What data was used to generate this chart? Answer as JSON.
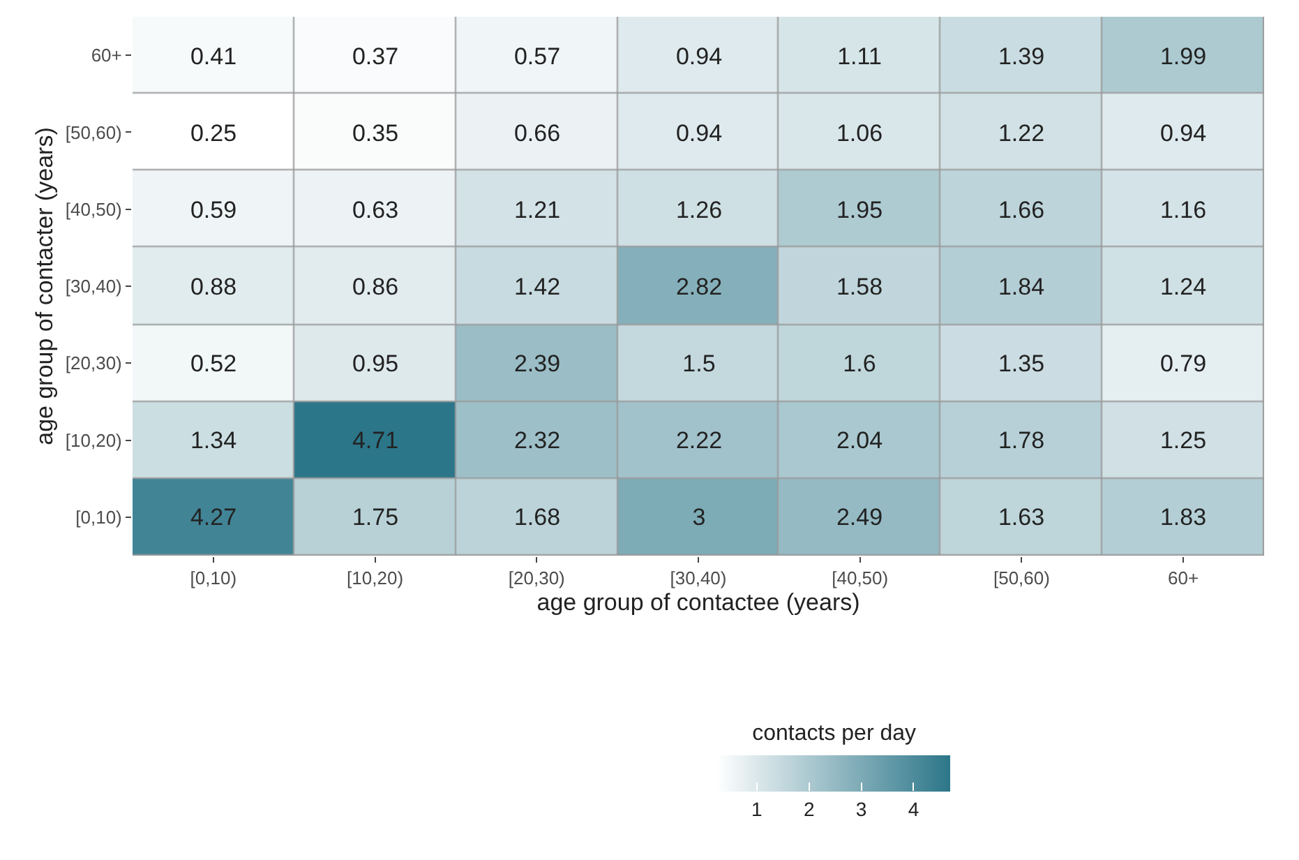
{
  "chart_data": {
    "type": "heatmap",
    "xlabel": "age group of contactee (years)",
    "ylabel": "age group of contacter (years)",
    "clabel": "contacts per day",
    "categories": [
      "[0,10)",
      "[10,20)",
      "[20,30)",
      "[30,40)",
      "[40,50)",
      "[50,60)",
      "60+"
    ],
    "y_categories": [
      "60+",
      "[50,60)",
      "[40,50)",
      "[30,40)",
      "[20,30)",
      "[10,20)",
      "[0,10)"
    ],
    "cells": [
      [
        0.41,
        0.37,
        0.57,
        0.94,
        1.11,
        1.39,
        1.99
      ],
      [
        0.25,
        0.35,
        0.66,
        0.94,
        1.06,
        1.22,
        0.94
      ],
      [
        0.59,
        0.63,
        1.21,
        1.26,
        1.95,
        1.66,
        1.16
      ],
      [
        0.88,
        0.86,
        1.42,
        2.82,
        1.58,
        1.84,
        1.24
      ],
      [
        0.52,
        0.95,
        2.39,
        1.5,
        1.6,
        1.35,
        0.79
      ],
      [
        1.34,
        4.71,
        2.32,
        2.22,
        2.04,
        1.78,
        1.25
      ],
      [
        4.27,
        1.75,
        1.68,
        3,
        2.49,
        1.63,
        1.83
      ]
    ],
    "clim": [
      0.25,
      4.71
    ],
    "cticks": [
      1,
      2,
      3,
      4
    ],
    "colors": [
      "#ffffff",
      "#2c7689"
    ],
    "data_labels": true
  }
}
